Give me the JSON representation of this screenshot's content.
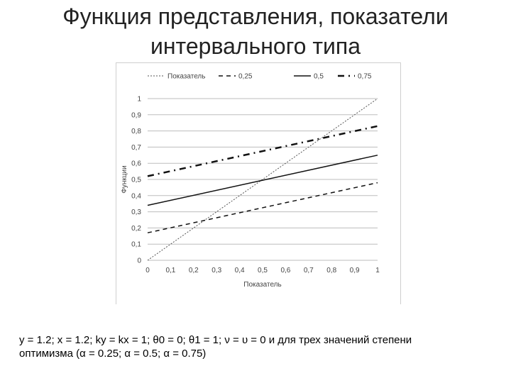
{
  "slide": {
    "title_line1": "Функция представления, показатели",
    "title_line2": "интервального типа"
  },
  "caption": {
    "line1": "y = 1.2; x = 1.2; ky = kx = 1; θ0 = 0; θ1 = 1; ν = υ = 0 и для трех значений степени",
    "line2": "оптимизма (α = 0.25; α = 0.5; α = 0.75)"
  },
  "chart_data": {
    "type": "line",
    "xlabel": "Показатель",
    "ylabel": "Функции",
    "xlim": [
      0,
      1
    ],
    "ylim": [
      0,
      1
    ],
    "x_ticks": [
      "0",
      "0,1",
      "0,2",
      "0,3",
      "0,4",
      "0,5",
      "0,6",
      "0,7",
      "0,8",
      "0,9",
      "1"
    ],
    "y_ticks": [
      "0",
      "0,1",
      "0,2",
      "0,3",
      "0,4",
      "0,5",
      "0,6",
      "0,7",
      "0,8",
      "0,9",
      "1"
    ],
    "grid": "horizontal",
    "legend_position": "top",
    "series": [
      {
        "name": "Показатель",
        "style": "dotted-thin",
        "color": "#555555",
        "x": [
          0,
          1
        ],
        "y": [
          0,
          1
        ]
      },
      {
        "name": "0,25",
        "style": "dashed",
        "color": "#111111",
        "x": [
          0,
          1
        ],
        "y": [
          0.17,
          0.48
        ]
      },
      {
        "name": "0,5",
        "style": "solid",
        "color": "#111111",
        "x": [
          0,
          1
        ],
        "y": [
          0.34,
          0.65
        ]
      },
      {
        "name": "0,75",
        "style": "dash-dot-heavy",
        "color": "#111111",
        "x": [
          0,
          1
        ],
        "y": [
          0.52,
          0.83
        ]
      }
    ]
  }
}
